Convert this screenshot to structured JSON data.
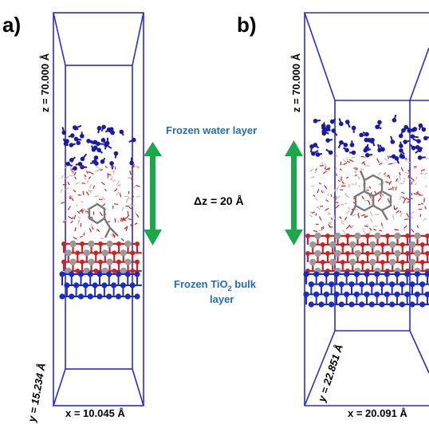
{
  "panels": {
    "a": {
      "label": "a)",
      "z_dim": "z = 70.000  Å",
      "x_dim": "x = 10.045  Å",
      "y_dim": "y = 15.234  Å"
    },
    "b": {
      "label": "b)",
      "z_dim": "z = 70.000  Å",
      "x_dim": "x = 20.091  Å",
      "y_dim": "y = 22.851  Å"
    }
  },
  "annotations": {
    "frozen_water": "Frozen water layer",
    "delta_z": "Δz = 20  Å",
    "frozen_tio2_line1": "Frozen TiO",
    "frozen_tio2_sub": "2",
    "frozen_tio2_line1_rest": " bulk",
    "frozen_tio2_line2": "layer"
  },
  "colors": {
    "box": "#2a2ad6",
    "arrow": "#1aa84a",
    "label_blue": "#1f6fb8",
    "frozen_water_molecules": "#1a1aa8",
    "water_oxygen": "#cc2222",
    "titanium": "#9a9a9a",
    "bulk_layer": "#1a2acc",
    "carbon": "#6e6e6e"
  }
}
